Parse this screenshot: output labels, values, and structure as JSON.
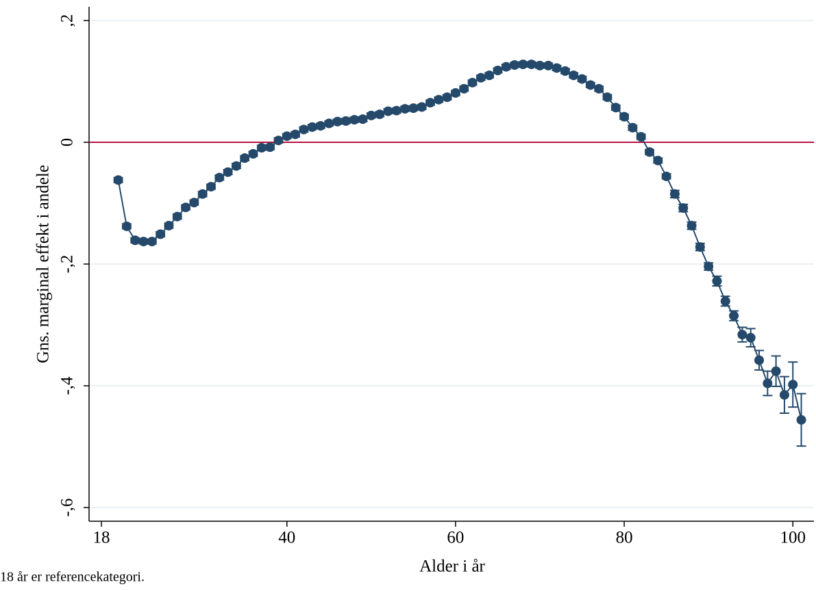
{
  "chart_data": {
    "type": "scatter-line",
    "y_label": "Gns. marginal effekt i andele",
    "x_label": "Alder i år",
    "note": "18 år er referencekategori.",
    "x": [
      20,
      21,
      22,
      23,
      24,
      25,
      26,
      27,
      28,
      29,
      30,
      31,
      32,
      33,
      34,
      35,
      36,
      37,
      38,
      39,
      40,
      41,
      42,
      43,
      44,
      45,
      46,
      47,
      48,
      49,
      50,
      51,
      52,
      53,
      54,
      55,
      56,
      57,
      58,
      59,
      60,
      61,
      62,
      63,
      64,
      65,
      66,
      67,
      68,
      69,
      70,
      71,
      72,
      73,
      74,
      75,
      76,
      77,
      78,
      79,
      80,
      81,
      82,
      83,
      84,
      85,
      86,
      87,
      88,
      89,
      90,
      91,
      92,
      93,
      94,
      95,
      96,
      97,
      98,
      99,
      100,
      101
    ],
    "series": [
      {
        "color": "#24496b",
        "values": [
          -0.062,
          -0.138,
          -0.161,
          -0.163,
          -0.163,
          -0.151,
          -0.137,
          -0.122,
          -0.107,
          -0.099,
          -0.085,
          -0.073,
          -0.058,
          -0.049,
          -0.039,
          -0.026,
          -0.019,
          -0.009,
          -0.008,
          0.003,
          0.01,
          0.013,
          0.021,
          0.025,
          0.027,
          0.031,
          0.034,
          0.035,
          0.037,
          0.038,
          0.044,
          0.046,
          0.051,
          0.052,
          0.055,
          0.056,
          0.058,
          0.065,
          0.07,
          0.074,
          0.081,
          0.088,
          0.098,
          0.106,
          0.11,
          0.118,
          0.124,
          0.127,
          0.128,
          0.128,
          0.126,
          0.126,
          0.122,
          0.117,
          0.11,
          0.104,
          0.094,
          0.088,
          0.074,
          0.057,
          0.042,
          0.024,
          0.009,
          -0.016,
          -0.03,
          -0.056,
          -0.085,
          -0.108,
          -0.137,
          -0.172,
          -0.204,
          -0.228,
          -0.261,
          -0.285,
          -0.316,
          -0.321,
          -0.358,
          -0.396,
          -0.376,
          -0.415,
          -0.398,
          -0.456
        ],
        "errors": [
          0.004,
          0.004,
          0.004,
          0.004,
          0.004,
          0.004,
          0.004,
          0.004,
          0.004,
          0.004,
          0.004,
          0.004,
          0.004,
          0.004,
          0.004,
          0.004,
          0.004,
          0.004,
          0.004,
          0.004,
          0.004,
          0.004,
          0.004,
          0.004,
          0.004,
          0.004,
          0.004,
          0.004,
          0.004,
          0.004,
          0.004,
          0.004,
          0.004,
          0.004,
          0.004,
          0.004,
          0.004,
          0.004,
          0.004,
          0.004,
          0.004,
          0.004,
          0.004,
          0.004,
          0.004,
          0.004,
          0.004,
          0.004,
          0.004,
          0.004,
          0.004,
          0.004,
          0.004,
          0.004,
          0.004,
          0.004,
          0.004,
          0.004,
          0.004,
          0.004,
          0.004,
          0.004,
          0.004,
          0.004,
          0.004,
          0.004,
          0.006,
          0.006,
          0.006,
          0.006,
          0.006,
          0.008,
          0.008,
          0.008,
          0.012,
          0.015,
          0.016,
          0.02,
          0.025,
          0.03,
          0.037,
          0.043
        ]
      }
    ],
    "reference_line": {
      "value": 0,
      "color": "#b5123e"
    },
    "xlim": [
      16.54,
      102.5
    ],
    "ylim": [
      -0.6225,
      0.2225
    ],
    "xticks": [
      18,
      40,
      60,
      80,
      100
    ],
    "yticks": [
      {
        "value": 0.2,
        "label": ",2"
      },
      {
        "value": 0,
        "label": "0"
      },
      {
        "value": -0.2,
        "label": "-,2"
      },
      {
        "value": -0.4,
        "label": "-,4"
      },
      {
        "value": -0.6,
        "label": "-,6"
      }
    ],
    "grid": true
  }
}
